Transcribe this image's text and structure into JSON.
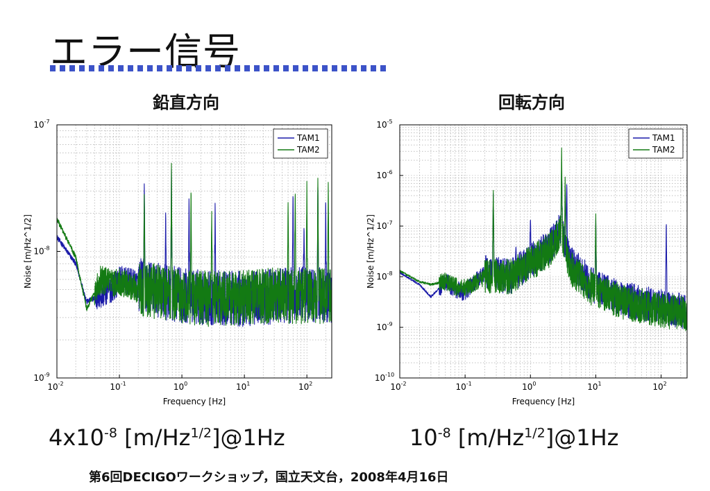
{
  "slide": {
    "title": "エラー信号",
    "footer": "第6回DECIGOワークショップ，国立天文台，2008年4月16日",
    "colors": {
      "title_rule": "#3c53c8",
      "tam1": "#1a1aa8",
      "tam2": "#137a13"
    }
  },
  "left": {
    "subtitle": "鉛直方向",
    "caption": {
      "mant": "4x10",
      "exp": "-8",
      "unit_a": " [m/Hz",
      "unit_exp": "1/2",
      "unit_b": "]@1Hz"
    }
  },
  "right": {
    "subtitle": "回転方向",
    "caption": {
      "mant": "10",
      "exp": "-8",
      "unit_a": " [m/Hz",
      "unit_exp": "1/2",
      "unit_b": "]@1Hz"
    }
  },
  "chart_data": [
    {
      "type": "line",
      "xlabel": "Frequency [Hz]",
      "ylabel": "Noise [m/Hz^1/2]",
      "xscale": "log",
      "yscale": "log",
      "xlim": [
        0.01,
        250
      ],
      "ylim": [
        1e-09,
        1e-07
      ],
      "xticks": [
        {
          "v": 0.01,
          "m": "10",
          "e": "-2"
        },
        {
          "v": 0.1,
          "m": "10",
          "e": "-1"
        },
        {
          "v": 1,
          "m": "10",
          "e": "0"
        },
        {
          "v": 10,
          "m": "10",
          "e": "1"
        },
        {
          "v": 100,
          "m": "10",
          "e": "2"
        }
      ],
      "yticks": [
        {
          "v": 1e-09,
          "m": "10",
          "e": "-9"
        },
        {
          "v": 1e-08,
          "m": "10",
          "e": "-8"
        },
        {
          "v": 1e-07,
          "m": "10",
          "e": "-7"
        }
      ],
      "grid": true,
      "legend": "top-right",
      "series": [
        {
          "name": "TAM1",
          "color": "#1a1aa8",
          "floor": [
            [
              0.01,
              1.3e-08
            ],
            [
              0.02,
              8e-09
            ],
            [
              0.03,
              4e-09
            ],
            [
              0.05,
              4.5e-09
            ],
            [
              0.08,
              5.2e-09
            ],
            [
              0.1,
              6e-09
            ],
            [
              0.2,
              5.5e-09
            ],
            [
              0.5,
              4.8e-09
            ],
            [
              1,
              4.5e-09
            ],
            [
              3,
              4.3e-09
            ],
            [
              10,
              4.2e-09
            ],
            [
              30,
              4.4e-09
            ],
            [
              100,
              4.6e-09
            ],
            [
              250,
              4.5e-09
            ]
          ],
          "peaks": [
            [
              0.25,
              3.6e-08
            ],
            [
              0.55,
              2.2e-08
            ],
            [
              0.68,
              4.5e-08
            ],
            [
              1.3,
              2.8e-08
            ],
            [
              3.4,
              2.5e-08
            ],
            [
              60,
              3.2e-08
            ],
            [
              90,
              1.7e-08
            ],
            [
              150,
              3.5e-08
            ],
            [
              200,
              2.8e-08
            ]
          ],
          "noise": 0.22
        },
        {
          "name": "TAM2",
          "color": "#137a13",
          "floor": [
            [
              0.01,
              1.8e-08
            ],
            [
              0.02,
              9e-09
            ],
            [
              0.03,
              3.5e-09
            ],
            [
              0.05,
              6e-09
            ],
            [
              0.08,
              5.5e-09
            ],
            [
              0.1,
              5.8e-09
            ],
            [
              0.2,
              5e-09
            ],
            [
              0.5,
              4.8e-09
            ],
            [
              1,
              4.4e-09
            ],
            [
              3,
              4.2e-09
            ],
            [
              10,
              4.3e-09
            ],
            [
              30,
              4.5e-09
            ],
            [
              100,
              4.4e-09
            ],
            [
              250,
              4.4e-09
            ]
          ],
          "peaks": [
            [
              0.25,
              3e-08
            ],
            [
              0.68,
              5e-08
            ],
            [
              1.4,
              3.5e-08
            ],
            [
              3,
              2.2e-08
            ],
            [
              50,
              2.5e-08
            ],
            [
              65,
              3.3e-08
            ],
            [
              100,
              3.8e-08
            ],
            [
              150,
              4.2e-08
            ],
            [
              220,
              3.9e-08
            ]
          ],
          "noise": 0.22
        }
      ]
    },
    {
      "type": "line",
      "xlabel": "Frequency [Hz]",
      "ylabel": "Noise [m/Hz^1/2]",
      "xscale": "log",
      "yscale": "log",
      "xlim": [
        0.01,
        250
      ],
      "ylim": [
        1e-10,
        1e-05
      ],
      "xticks": [
        {
          "v": 0.01,
          "m": "10",
          "e": "-2"
        },
        {
          "v": 0.1,
          "m": "10",
          "e": "-1"
        },
        {
          "v": 1,
          "m": "10",
          "e": "0"
        },
        {
          "v": 10,
          "m": "10",
          "e": "1"
        },
        {
          "v": 100,
          "m": "10",
          "e": "2"
        }
      ],
      "yticks": [
        {
          "v": 1e-10,
          "m": "10",
          "e": "-10"
        },
        {
          "v": 1e-09,
          "m": "10",
          "e": "-9"
        },
        {
          "v": 1e-08,
          "m": "10",
          "e": "-8"
        },
        {
          "v": 1e-07,
          "m": "10",
          "e": "-7"
        },
        {
          "v": 1e-06,
          "m": "10",
          "e": "-6"
        },
        {
          "v": 1e-05,
          "m": "10",
          "e": "-5"
        }
      ],
      "grid": true,
      "legend": "top-right",
      "series": [
        {
          "name": "TAM1",
          "color": "#1a1aa8",
          "floor": [
            [
              0.01,
              1.2e-08
            ],
            [
              0.02,
              7e-09
            ],
            [
              0.03,
              4e-09
            ],
            [
              0.05,
              8e-09
            ],
            [
              0.08,
              5e-09
            ],
            [
              0.1,
              5e-09
            ],
            [
              0.2,
              1.2e-08
            ],
            [
              0.5,
              1e-08
            ],
            [
              1,
              2e-08
            ],
            [
              2,
              4e-08
            ],
            [
              3,
              9e-08
            ],
            [
              4,
              2e-08
            ],
            [
              10,
              6e-09
            ],
            [
              30,
              3.5e-09
            ],
            [
              100,
              2.5e-09
            ],
            [
              250,
              2e-09
            ]
          ],
          "peaks": [
            [
              0.08,
              8e-09
            ],
            [
              0.27,
              5e-07
            ],
            [
              0.6,
              4e-08
            ],
            [
              1,
              1.5e-07
            ],
            [
              3,
              2e-06
            ],
            [
              3.6,
              8e-07
            ],
            [
              10,
              1.5e-07
            ],
            [
              120,
              1.5e-07
            ]
          ],
          "noise": 0.35
        },
        {
          "name": "TAM2",
          "color": "#137a13",
          "floor": [
            [
              0.01,
              1.3e-08
            ],
            [
              0.02,
              8e-09
            ],
            [
              0.03,
              7e-09
            ],
            [
              0.05,
              8e-09
            ],
            [
              0.08,
              6e-09
            ],
            [
              0.1,
              6e-09
            ],
            [
              0.2,
              1e-08
            ],
            [
              0.5,
              1e-08
            ],
            [
              1,
              1.8e-08
            ],
            [
              2,
              3.5e-08
            ],
            [
              3,
              8e-08
            ],
            [
              4,
              1.5e-08
            ],
            [
              10,
              5e-09
            ],
            [
              30,
              3e-09
            ],
            [
              100,
              2.2e-09
            ],
            [
              250,
              1.8e-09
            ]
          ],
          "peaks": [
            [
              0.27,
              6e-07
            ],
            [
              3,
              4e-06
            ],
            [
              3.4,
              1e-06
            ],
            [
              10,
              2e-07
            ]
          ],
          "noise": 0.35
        }
      ]
    }
  ]
}
